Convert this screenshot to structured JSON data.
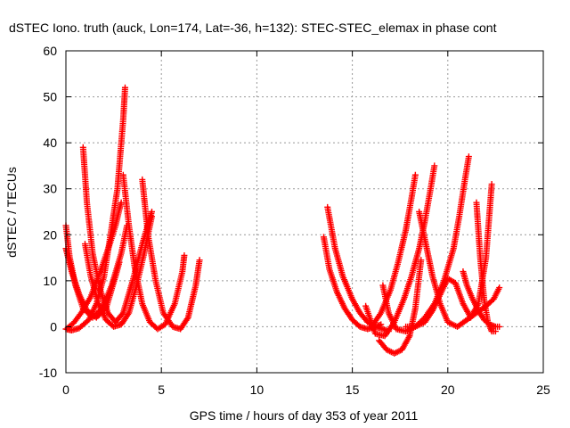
{
  "chart_data": {
    "type": "scatter",
    "title": "dSTEC Iono. truth (auck, Lon=174, Lat=-36, h=132): STEC-STEC_elemax in phase cont",
    "xlabel": "GPS time / hours of day 353 of year 2011",
    "ylabel": "dSTEC  / TECUs",
    "xlim": [
      0,
      25
    ],
    "ylim": [
      -10,
      60
    ],
    "x_ticks": [
      "0",
      "5",
      "10",
      "15",
      "20",
      "25"
    ],
    "y_ticks": [
      "-10",
      "0",
      "10",
      "20",
      "30",
      "40",
      "50",
      "60"
    ],
    "grid": true,
    "legend": "none",
    "marker": "plus",
    "color": "#ff0000",
    "series": [
      {
        "x": [
          0.0,
          0.3,
          0.7,
          1.2,
          1.6,
          2.0,
          2.3,
          2.7,
          3.0,
          3.1
        ],
        "y": [
          -0.5,
          -0.8,
          -0.3,
          1.5,
          5.0,
          11.0,
          19.0,
          30.0,
          45.0,
          52.0
        ]
      },
      {
        "x": [
          0.1,
          0.4,
          0.8,
          1.3,
          1.8,
          2.3,
          2.6,
          2.8,
          2.9
        ],
        "y": [
          -0.2,
          0.8,
          3.0,
          6.5,
          12.0,
          18.0,
          22.0,
          25.5,
          27.0
        ]
      },
      {
        "x": [
          0.0,
          0.2,
          0.5,
          0.9,
          1.4,
          1.9,
          2.4,
          2.9,
          3.2
        ],
        "y": [
          22.0,
          15.0,
          9.0,
          4.0,
          2.0,
          4.0,
          9.0,
          16.0,
          22.0
        ]
      },
      {
        "x": [
          0.0,
          0.3,
          0.7,
          1.1,
          1.6,
          2.1,
          2.6,
          2.8
        ],
        "y": [
          17.0,
          12.0,
          7.0,
          3.5,
          2.0,
          4.0,
          11.0,
          14.0
        ]
      },
      {
        "x": [
          0.9,
          1.1,
          1.4,
          1.8,
          2.2,
          2.6,
          3.0,
          3.5,
          4.0,
          4.5
        ],
        "y": [
          39.0,
          27.0,
          16.0,
          8.0,
          3.0,
          1.0,
          3.0,
          10.0,
          18.0,
          25.0
        ]
      },
      {
        "x": [
          1.0,
          1.3,
          1.7,
          2.1,
          2.5,
          2.9,
          3.3,
          3.7,
          4.1,
          4.5
        ],
        "y": [
          18.0,
          11.0,
          5.0,
          1.5,
          0.0,
          0.5,
          3.0,
          9.0,
          16.0,
          24.0
        ]
      },
      {
        "x": [
          3.0,
          3.3,
          3.6,
          4.0,
          4.4,
          4.8,
          5.2,
          5.7,
          6.1,
          6.2
        ],
        "y": [
          33.0,
          22.0,
          13.0,
          5.0,
          1.0,
          -0.5,
          0.5,
          5.0,
          12.0,
          15.5
        ]
      },
      {
        "x": [
          4.0,
          4.3,
          4.7,
          5.1,
          5.6,
          6.0,
          6.4,
          6.8,
          7.0
        ],
        "y": [
          32.0,
          20.0,
          10.0,
          3.0,
          0.0,
          -0.5,
          2.0,
          9.0,
          14.5
        ]
      },
      {
        "x": [
          13.5,
          13.8,
          14.2,
          14.6,
          15.0,
          15.4,
          15.8,
          16.2,
          16.5
        ],
        "y": [
          19.5,
          12.5,
          7.5,
          4.0,
          1.5,
          0.0,
          -0.5,
          0.0,
          0.5
        ]
      },
      {
        "x": [
          13.7,
          14.1,
          14.5,
          15.0,
          15.4,
          15.8,
          16.2,
          16.6,
          16.9
        ],
        "y": [
          26.0,
          17.0,
          11.0,
          6.0,
          3.0,
          1.0,
          0.0,
          -0.5,
          -1.0
        ]
      },
      {
        "x": [
          15.7,
          16.2,
          16.7,
          17.2,
          17.7,
          18.1,
          18.5,
          18.8,
          19.1,
          19.3
        ],
        "y": [
          4.5,
          -1.5,
          -2.0,
          1.0,
          6.0,
          11.0,
          17.0,
          23.0,
          30.0,
          35.0
        ]
      },
      {
        "x": [
          16.0,
          16.5,
          17.0,
          17.4,
          17.8,
          18.1,
          18.3
        ],
        "y": [
          0.0,
          3.0,
          8.0,
          14.0,
          21.0,
          28.0,
          33.0
        ]
      },
      {
        "x": [
          16.4,
          16.8,
          17.2,
          17.6,
          18.0,
          18.3,
          18.6
        ],
        "y": [
          -3.0,
          -5.0,
          -5.8,
          -5.0,
          -2.0,
          4.0,
          14.5
        ]
      },
      {
        "x": [
          16.6,
          16.9,
          17.3,
          17.8,
          18.3,
          18.8,
          19.3,
          19.8,
          20.3,
          20.6,
          20.9,
          21.1
        ],
        "y": [
          9.0,
          3.0,
          -0.5,
          -1.0,
          0.0,
          2.0,
          5.0,
          10.0,
          17.0,
          24.0,
          32.0,
          37.0
        ]
      },
      {
        "x": [
          17.8,
          18.3,
          18.8,
          19.2,
          19.6,
          20.0,
          20.4,
          20.8,
          21.2,
          21.6,
          22.0,
          22.3
        ],
        "y": [
          0.0,
          0.0,
          1.0,
          3.5,
          7.0,
          10.5,
          9.5,
          5.0,
          2.0,
          5.0,
          15.0,
          31.0
        ]
      },
      {
        "x": [
          18.5,
          18.8,
          19.2,
          19.6,
          20.0,
          20.5,
          21.0,
          21.5,
          22.0,
          22.4,
          22.7
        ],
        "y": [
          25.0,
          19.0,
          11.0,
          5.0,
          1.0,
          0.0,
          1.5,
          3.0,
          4.5,
          6.0,
          8.5
        ]
      },
      {
        "x": [
          20.8,
          21.0,
          21.3,
          21.6,
          21.9,
          22.2,
          22.5,
          22.7
        ],
        "y": [
          12.0,
          9.0,
          6.0,
          3.5,
          1.5,
          0.5,
          0.0,
          0.0
        ]
      },
      {
        "x": [
          21.5,
          21.7,
          21.9,
          22.1,
          22.3,
          22.5
        ],
        "y": [
          27.0,
          15.0,
          6.0,
          1.0,
          -1.0,
          -1.0
        ]
      }
    ]
  }
}
